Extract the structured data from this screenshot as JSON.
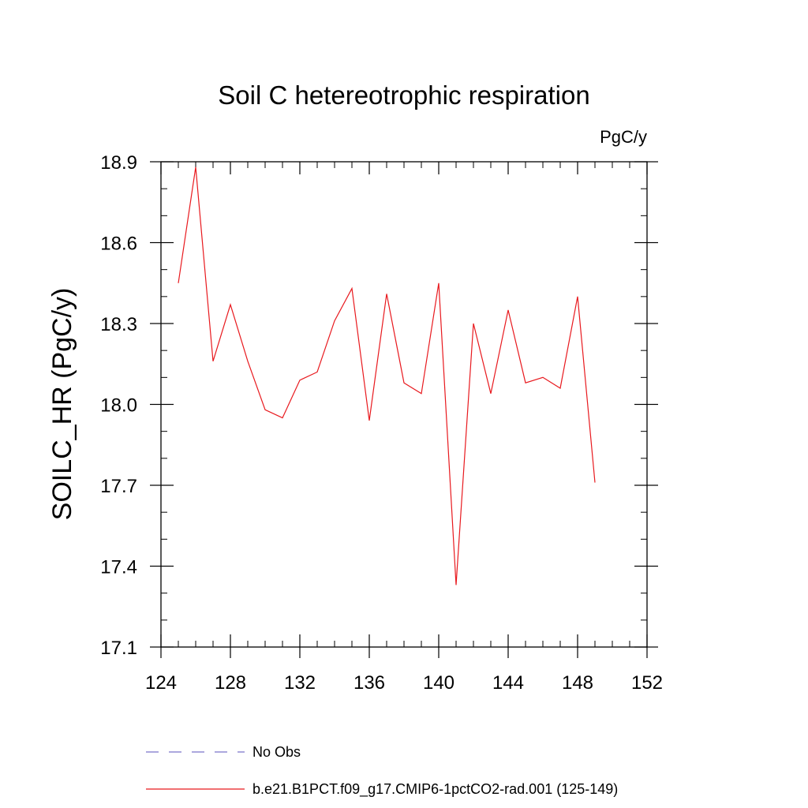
{
  "chart_data": {
    "type": "line",
    "title": "Soil C hetereotrophic respiration",
    "units_label": "PgC/y",
    "ylabel": "SOILC_HR  (PgC/y)",
    "xlabel": "",
    "xlim": [
      124,
      152
    ],
    "ylim": [
      17.1,
      18.9
    ],
    "x_ticks": [
      124,
      128,
      132,
      136,
      140,
      144,
      148,
      152
    ],
    "x_minor_step": 1,
    "y_ticks": [
      "17.1",
      "17.4",
      "17.7",
      "18.0",
      "18.3",
      "18.6",
      "18.9"
    ],
    "y_minor_step": 0.1,
    "grid": false,
    "legend_position": "bottom",
    "series": [
      {
        "name": "b.e21.B1PCT.f09_g17.CMIP6-1pctCO2-rad.001 (125-149)",
        "color": "#e8191e",
        "style": "solid",
        "x": [
          125,
          126,
          127,
          128,
          129,
          130,
          131,
          132,
          133,
          134,
          135,
          136,
          137,
          138,
          139,
          140,
          141,
          142,
          143,
          144,
          145,
          146,
          147,
          148,
          149
        ],
        "y": [
          18.45,
          18.88,
          18.16,
          18.37,
          18.16,
          17.98,
          17.95,
          18.09,
          18.12,
          18.31,
          18.43,
          17.94,
          18.41,
          18.08,
          18.04,
          18.45,
          17.33,
          18.3,
          18.04,
          18.35,
          18.08,
          18.1,
          18.06,
          18.4,
          17.71
        ]
      }
    ],
    "legend": [
      {
        "label": "No Obs",
        "color": "#7b74c9",
        "style": "dashed"
      },
      {
        "label": "b.e21.B1PCT.f09_g17.CMIP6-1pctCO2-rad.001 (125-149)",
        "color": "#e8191e",
        "style": "solid"
      }
    ]
  }
}
